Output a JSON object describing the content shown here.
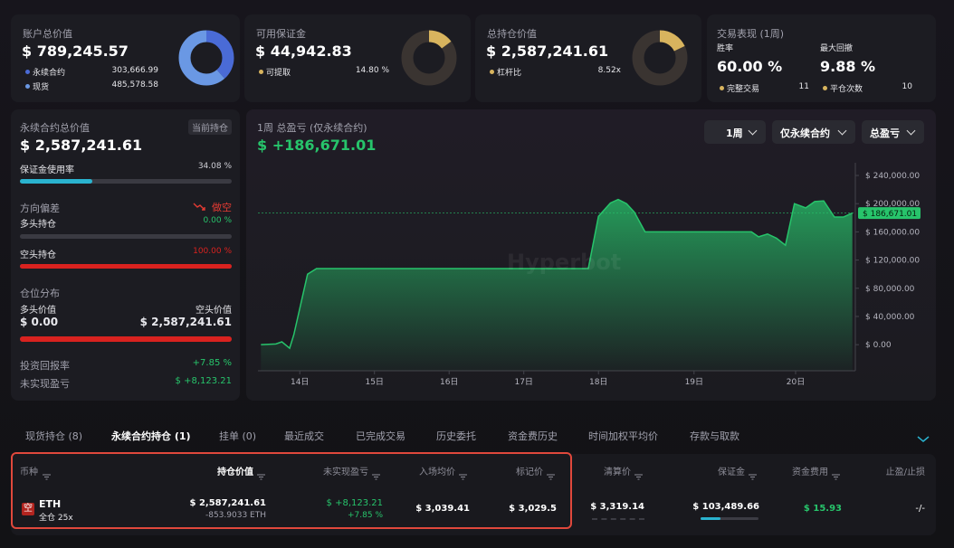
{
  "summary_cards": [
    {
      "title": "账户总价值",
      "value": "$ 789,245.57",
      "legend": [
        {
          "label": "永续合约",
          "value": {
            "value": 303666.99,
            "label": "303,666.99"
          },
          "color": "#4a6bd6"
        },
        {
          "label": "现货",
          "value": {
            "value": 485578.58,
            "label": "485,578.58"
          },
          "color": "#6a98e4"
        }
      ]
    },
    {
      "title": "可用保证金",
      "value": "$ 44,942.83",
      "legend": [
        {
          "label": "可提取",
          "value": {
            "value": 14.8,
            "label": "14.80 %"
          },
          "color": "#d8b45e"
        }
      ]
    },
    {
      "title": "总持仓价值",
      "value": "$ 2,587,241.61",
      "legend": [
        {
          "label": "杠杆比",
          "value": "8.52x",
          "color": "#d8b45e"
        }
      ]
    }
  ],
  "performance": {
    "title": "交易表现 (1周)",
    "win_rate_label": "胜率",
    "win_rate": "60.00 %",
    "max_drawdown_label": "最大回撤",
    "max_drawdown": "9.88 %",
    "stats": [
      {
        "label": "完整交易",
        "value": 11,
        "color": "#d8b45e"
      },
      {
        "label": "平仓次数",
        "value": 10,
        "color": "#d8b45e"
      }
    ]
  },
  "perp_panel": {
    "title": "永续合约总价值",
    "badge": "当前持仓",
    "value": "$ 2,587,241.61",
    "margin_usage": {
      "label": "保证金使用率",
      "value": {
        "value": 34.08,
        "label": "34.08 %"
      },
      "color": "#2ab3cf"
    },
    "bias": {
      "label": "方向偏差",
      "value": "做空"
    },
    "long": {
      "label": "多头持仓",
      "value": {
        "value": 0,
        "label": "0.00 %"
      },
      "color": "#27c46b"
    },
    "short": {
      "label": "空头持仓",
      "value": {
        "value": 100,
        "label": "100.00 %"
      },
      "color": "#d9221f"
    },
    "distribution": {
      "title": "仓位分布",
      "long_label": "多头价值",
      "short_label": "空头价值",
      "long_value": {
        "value": 0,
        "label": "$ 0.00"
      },
      "short_value": {
        "value": 2587241.61,
        "label": "$ 2,587,241.61"
      }
    },
    "roi": {
      "label": "投资回报率",
      "value": "+7.85 %"
    },
    "upnl": {
      "label": "未实现盈亏",
      "value": "$ +8,123.21"
    }
  },
  "pnl_chart": {
    "title": "1周 总盈亏 (仅永续合约)",
    "value": "$ +186,671.01",
    "controls": [
      "1周",
      "仅永续合约",
      "总盈亏"
    ],
    "watermark": "Hyperbot",
    "chart_data": {
      "type": "area",
      "x": [
        0.5,
        3,
        4,
        5.3,
        6,
        8.3,
        9.8,
        55.3,
        57,
        59,
        60.3,
        61.7,
        63,
        64.8,
        82.6,
        83.8,
        85.3,
        86.8,
        88.3,
        89.8,
        91.7,
        93.2,
        94.7,
        96.5,
        98,
        99.5
      ],
      "values": [
        0,
        1000,
        4000,
        -5000,
        14000,
        100000,
        108000,
        108000,
        182000,
        201000,
        206000,
        200000,
        188000,
        160000,
        160000,
        153000,
        157000,
        151000,
        141000,
        200000,
        194000,
        203000,
        204000,
        181000,
        181000,
        186671.01
      ],
      "xlim": [
        0,
        100
      ],
      "xticks": [
        {
          "value": 7,
          "label": "14日"
        },
        {
          "value": 19.5,
          "label": "15日"
        },
        {
          "value": 32,
          "label": "16日"
        },
        {
          "value": 44.5,
          "label": "17日"
        },
        {
          "value": 57,
          "label": "18日"
        },
        {
          "value": 73,
          "label": "19日"
        },
        {
          "value": 90,
          "label": "20日"
        }
      ],
      "ylim": [
        -37000,
        258000
      ],
      "yticks": [
        {
          "value": 0,
          "label": "$ 0.00"
        },
        {
          "value": 40000,
          "label": "$ 40,000.00"
        },
        {
          "value": 80000,
          "label": "$ 80,000.00"
        },
        {
          "value": 120000,
          "label": "$ 120,000.00"
        },
        {
          "value": 160000,
          "label": "$ 160,000.00"
        },
        {
          "value": 200000,
          "label": "$ 200,000.00"
        },
        {
          "value": 240000,
          "label": "$ 240,000.00"
        }
      ],
      "last_value": {
        "value": 186671.01,
        "label": "$ 186,671.01"
      },
      "color": "#27c46b"
    }
  },
  "tabs": {
    "items": [
      "现货持仓 (8)",
      "永续合约持仓 (1)",
      "挂单 (0)",
      "最近成交",
      "已完成交易",
      "历史委托",
      "资金费历史",
      "时间加权平均价",
      "存款与取款"
    ],
    "active": 1
  },
  "table": {
    "headers": [
      "币种",
      "持仓价值",
      "未实现盈亏",
      "入场均价",
      "标记价",
      "清算价",
      "保证金",
      "资金费用",
      "止盈/止损"
    ],
    "sorted_column": 1,
    "rows": [
      {
        "side": "空",
        "coin": "ETH",
        "margin_mode": "全仓 25x",
        "position_value": "$ 2,587,241.61",
        "size": "-853.9033 ETH",
        "upnl": "$ +8,123.21",
        "upnl_pct": "+7.85 %",
        "entry_price": "$ 3,039.41",
        "mark_price": "$ 3,029.5",
        "liq_price": "$ 3,319.14",
        "margin": "$ 103,489.66",
        "funding": "$ 15.93",
        "tp_sl": "-/-"
      }
    ]
  }
}
